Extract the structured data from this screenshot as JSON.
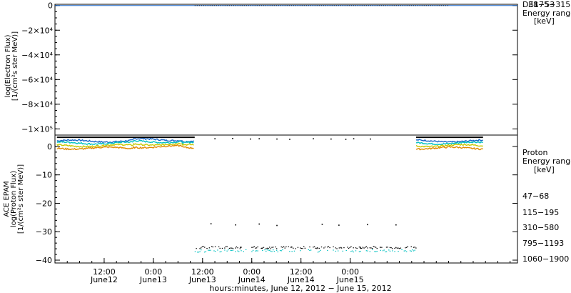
{
  "chart_data": [
    {
      "type": "line",
      "title": "",
      "ylabel_lines": [
        "log(Electron Flux)",
        "[1/(cm²s ster MeV)]"
      ],
      "y_ticks": [
        {
          "value": 0,
          "label": "0"
        },
        {
          "value": -20000,
          "label": "−2×10⁴"
        },
        {
          "value": -40000,
          "label": "−4×10⁴"
        },
        {
          "value": -60000,
          "label": "−6×10⁴"
        },
        {
          "value": -80000,
          "label": "−8×10⁴"
        },
        {
          "value": -100000,
          "label": "−1×10⁵"
        }
      ],
      "ylim": [
        -105000,
        1000
      ],
      "legend": {
        "overlap_labels": [
          "DE1",
          "38−53",
          "175−315"
        ],
        "title_lines": [
          "Electron",
          "Energy range",
          "[keV]"
        ]
      },
      "series": [
        {
          "color": "#1a66c8",
          "values": [
            0,
            0
          ]
        },
        {
          "color": "#00b0b0",
          "values": [
            0,
            0
          ]
        }
      ]
    },
    {
      "type": "scatter",
      "ylabel_lines": [
        "ACE EPAM",
        "log(Proton Flux)",
        "[1/(cm²s ster MeV)]"
      ],
      "y_ticks": [
        {
          "value": 0,
          "label": "0"
        },
        {
          "value": -10,
          "label": "−10"
        },
        {
          "value": -20,
          "label": "−20"
        },
        {
          "value": -30,
          "label": "−30"
        },
        {
          "value": -40,
          "label": "−40"
        }
      ],
      "ylim": [
        -41,
        4
      ],
      "legend_title_lines": [
        "Proton",
        "Energy range",
        "[keV]"
      ],
      "series": [
        {
          "name": "47−68",
          "color": "#000000",
          "segments": [
            [
              0.7,
              3.2
            ],
            [
              3.2,
              3.2
            ],
            [
              3.6,
              3.2
            ],
            [
              4.4,
              3.2
            ]
          ],
          "sparse": [
            [
              1.62,
              2.9
            ],
            [
              1.8,
              3.0
            ],
            [
              1.98,
              2.8
            ],
            [
              2.07,
              2.9
            ],
            [
              2.25,
              2.8
            ],
            [
              2.38,
              2.7
            ],
            [
              2.62,
              2.9
            ],
            [
              2.8,
              2.8
            ],
            [
              2.95,
              2.7
            ],
            [
              3.03,
              2.9
            ],
            [
              3.2,
              2.8
            ],
            [
              1.58,
              -27
            ],
            [
              1.83,
              -27.4
            ],
            [
              2.07,
              -27.1
            ],
            [
              2.25,
              -27.6
            ],
            [
              2.71,
              -27.2
            ],
            [
              2.88,
              -27.5
            ],
            [
              3.17,
              -27.3
            ],
            [
              3.46,
              -27.4
            ],
            [
              1.88,
              -35.3
            ],
            [
              2.1,
              -35.6
            ],
            [
              2.4,
              -35.2
            ],
            [
              2.66,
              -35.5
            ],
            [
              2.9,
              -35.4
            ],
            [
              3.1,
              -35.6
            ],
            [
              3.3,
              -35.3
            ]
          ]
        },
        {
          "name": "115−195",
          "color": "#1a66c8",
          "base": 1.9
        },
        {
          "name": "310−580",
          "color": "#00c0c0",
          "base": 1.2,
          "low_level": -36.5
        },
        {
          "name": "795−1193",
          "color": "#c8c800",
          "base": 0.3
        },
        {
          "name": "1060−1900",
          "color": "#e08800",
          "base": -0.6
        }
      ],
      "x_axis": {
        "label": "hours:minutes, June 12, 2012 − June 15, 2012",
        "xlim": [
          0,
          4.7
        ],
        "ticks": [
          {
            "x": 0.5,
            "time": "12:00",
            "date": "June12"
          },
          {
            "x": 1.0,
            "time": "0:00",
            "date": "June13"
          },
          {
            "x": 1.5,
            "time": "12:00",
            "date": "June13"
          },
          {
            "x": 2.0,
            "time": "0:00",
            "date": "June14"
          },
          {
            "x": 2.5,
            "time": "12:00",
            "date": "June14"
          },
          {
            "x": 3.0,
            "time": "0:00",
            "date": "June15"
          }
        ]
      }
    }
  ]
}
